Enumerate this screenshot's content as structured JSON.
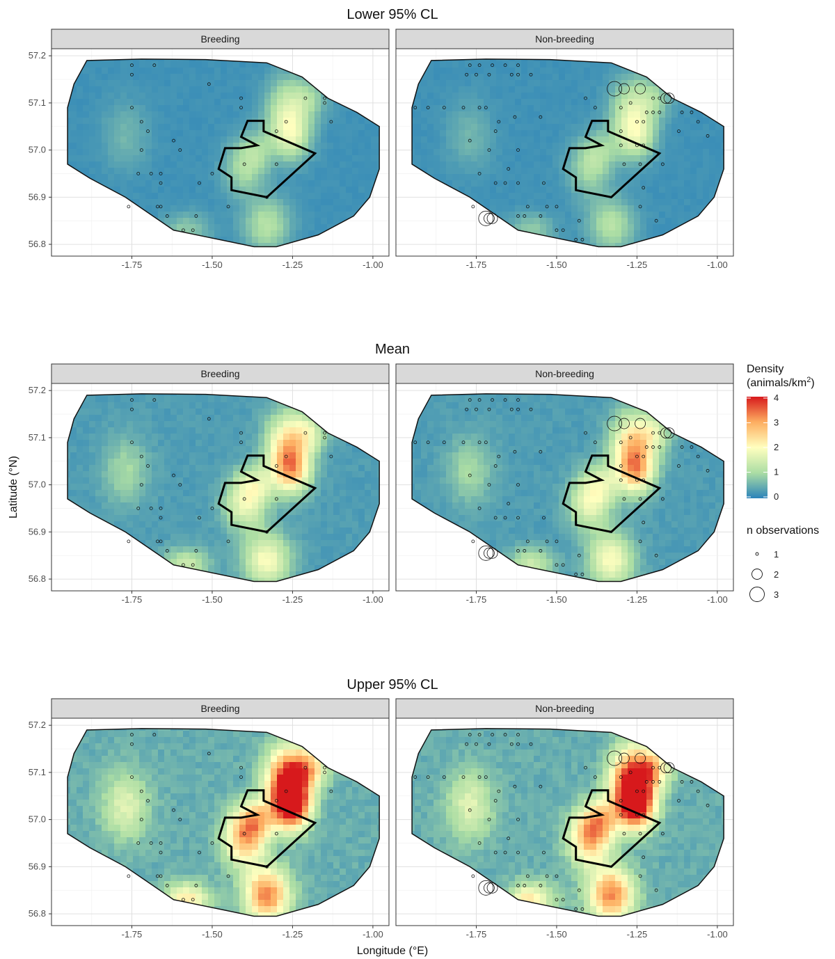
{
  "figure": {
    "rows": [
      {
        "title": "Lower 95% CL",
        "intensity": 0.35
      },
      {
        "title": "Mean",
        "intensity": 0.6
      },
      {
        "title": "Upper 95% CL",
        "intensity": 1.0
      }
    ],
    "panels": [
      "Breeding",
      "Non-breeding"
    ],
    "x_label": "Longitude (°E)",
    "y_label": "Latitude (°N)",
    "x_ticks": [
      "-1.75",
      "-1.50",
      "-1.25",
      "-1.00"
    ],
    "y_ticks": [
      "57.2",
      "57.1",
      "57.0",
      "56.9",
      "56.8"
    ]
  },
  "legend": {
    "density_title_line1": "Density",
    "density_title_line2": "(animals/km",
    "density_title_sup": "2",
    "density_title_close": ")",
    "density_ticks": [
      "4",
      "3",
      "2",
      "1",
      "0"
    ],
    "colors": [
      "#d7191c",
      "#fdae61",
      "#ffffbf",
      "#abdda4",
      "#2b83ba"
    ],
    "size_title": "n observations",
    "size_items": [
      "1",
      "2",
      "3"
    ]
  },
  "chart_data": {
    "type": "map",
    "xlim": [
      -2.0,
      -0.95
    ],
    "ylim": [
      56.775,
      57.215
    ],
    "color_scale": {
      "min": 0,
      "max": 4,
      "palette": "Spectral (reversed)"
    },
    "survey_area_outline": [
      [
        -1.89,
        57.19
      ],
      [
        -1.72,
        57.193
      ],
      [
        -1.52,
        57.192
      ],
      [
        -1.33,
        57.185
      ],
      [
        -1.22,
        57.155
      ],
      [
        -1.14,
        57.11
      ],
      [
        -1.05,
        57.08
      ],
      [
        -0.98,
        57.05
      ],
      [
        -0.98,
        56.96
      ],
      [
        -1.01,
        56.9
      ],
      [
        -1.06,
        56.86
      ],
      [
        -1.17,
        56.82
      ],
      [
        -1.3,
        56.795
      ],
      [
        -1.37,
        56.795
      ],
      [
        -1.62,
        56.83
      ],
      [
        -1.77,
        56.9
      ],
      [
        -1.88,
        56.94
      ],
      [
        -1.95,
        56.97
      ],
      [
        -1.95,
        57.09
      ],
      [
        -1.93,
        57.14
      ]
    ],
    "site_boundary": [
      [
        -1.39,
        57.062
      ],
      [
        -1.34,
        57.062
      ],
      [
        -1.34,
        57.04
      ],
      [
        -1.18,
        56.993
      ],
      [
        -1.33,
        56.9
      ],
      [
        -1.44,
        56.915
      ],
      [
        -1.44,
        56.942
      ],
      [
        -1.48,
        56.96
      ],
      [
        -1.46,
        57.004
      ],
      [
        -1.41,
        57.004
      ],
      [
        -1.36,
        57.01
      ],
      [
        -1.41,
        57.028
      ]
    ],
    "hotspots": [
      {
        "lon": -1.27,
        "lat": 57.08,
        "weight": 1.0,
        "sx": 0.045,
        "sy": 0.05
      },
      {
        "lon": -1.25,
        "lat": 57.03,
        "weight": 0.95,
        "sx": 0.04,
        "sy": 0.035
      },
      {
        "lon": -1.33,
        "lat": 56.84,
        "weight": 0.85,
        "sx": 0.05,
        "sy": 0.04
      },
      {
        "lon": -1.4,
        "lat": 56.96,
        "weight": 0.7,
        "sx": 0.045,
        "sy": 0.04
      },
      {
        "lon": -1.2,
        "lat": 57.11,
        "weight": 0.6,
        "sx": 0.04,
        "sy": 0.03
      },
      {
        "lon": -1.58,
        "lat": 56.83,
        "weight": 0.55,
        "sx": 0.05,
        "sy": 0.025
      },
      {
        "lon": -1.36,
        "lat": 57.0,
        "weight": 0.5,
        "sx": 0.04,
        "sy": 0.03
      },
      {
        "lon": -1.77,
        "lat": 57.03,
        "weight": 0.35,
        "sx": 0.05,
        "sy": 0.05
      }
    ],
    "observations": {
      "Breeding": [
        [
          -1.75,
          57.18,
          1
        ],
        [
          -1.68,
          57.18,
          1
        ],
        [
          -1.75,
          57.16,
          1
        ],
        [
          -1.75,
          57.09,
          1
        ],
        [
          -1.72,
          57.06,
          1
        ],
        [
          -1.7,
          57.04,
          1
        ],
        [
          -1.62,
          57.02,
          1
        ],
        [
          -1.72,
          57.0,
          1
        ],
        [
          -1.6,
          57.0,
          1
        ],
        [
          -1.73,
          56.95,
          1
        ],
        [
          -1.69,
          56.95,
          1
        ],
        [
          -1.66,
          56.95,
          1
        ],
        [
          -1.66,
          56.93,
          1
        ],
        [
          -1.51,
          57.14,
          1
        ],
        [
          -1.5,
          56.95,
          1
        ],
        [
          -1.54,
          56.93,
          1
        ],
        [
          -1.76,
          56.88,
          1
        ],
        [
          -1.67,
          56.88,
          1
        ],
        [
          -1.66,
          56.88,
          1
        ],
        [
          -1.64,
          56.86,
          1
        ],
        [
          -1.59,
          56.83,
          1
        ],
        [
          -1.56,
          56.83,
          1
        ],
        [
          -1.55,
          56.86,
          1
        ],
        [
          -1.45,
          56.88,
          1
        ],
        [
          -1.41,
          57.11,
          1
        ],
        [
          -1.41,
          57.09,
          1
        ],
        [
          -1.3,
          57.04,
          1
        ],
        [
          -1.27,
          57.06,
          1
        ],
        [
          -1.4,
          56.97,
          1
        ],
        [
          -1.3,
          56.97,
          1
        ],
        [
          -1.33,
          56.9,
          1
        ],
        [
          -1.15,
          57.1,
          1
        ],
        [
          -1.15,
          57.11,
          1
        ],
        [
          -1.13,
          57.06,
          1
        ],
        [
          -1.21,
          57.11,
          1
        ]
      ],
      "Non-breeding": [
        [
          -1.77,
          57.18,
          1
        ],
        [
          -1.74,
          57.18,
          1
        ],
        [
          -1.7,
          57.18,
          1
        ],
        [
          -1.66,
          57.18,
          1
        ],
        [
          -1.62,
          57.18,
          1
        ],
        [
          -1.78,
          57.16,
          1
        ],
        [
          -1.75,
          57.16,
          1
        ],
        [
          -1.71,
          57.16,
          1
        ],
        [
          -1.64,
          57.16,
          1
        ],
        [
          -1.62,
          57.16,
          1
        ],
        [
          -1.58,
          57.16,
          1
        ],
        [
          -1.94,
          57.09,
          1
        ],
        [
          -1.9,
          57.09,
          1
        ],
        [
          -1.85,
          57.09,
          1
        ],
        [
          -1.79,
          57.09,
          1
        ],
        [
          -1.74,
          57.09,
          1
        ],
        [
          -1.72,
          57.09,
          1
        ],
        [
          -1.68,
          57.06,
          1
        ],
        [
          -1.63,
          57.07,
          1
        ],
        [
          -1.55,
          57.07,
          1
        ],
        [
          -1.69,
          57.04,
          1
        ],
        [
          -1.77,
          57.02,
          1
        ],
        [
          -1.71,
          57.0,
          1
        ],
        [
          -1.62,
          57.0,
          1
        ],
        [
          -1.65,
          56.96,
          1
        ],
        [
          -1.74,
          56.95,
          1
        ],
        [
          -1.69,
          56.93,
          1
        ],
        [
          -1.66,
          56.93,
          1
        ],
        [
          -1.62,
          56.93,
          1
        ],
        [
          -1.59,
          56.88,
          1
        ],
        [
          -1.54,
          56.93,
          1
        ],
        [
          -1.53,
          56.88,
          1
        ],
        [
          -1.5,
          56.88,
          1
        ],
        [
          -1.76,
          56.88,
          1
        ],
        [
          -1.62,
          56.86,
          1
        ],
        [
          -1.6,
          56.86,
          1
        ],
        [
          -1.55,
          56.86,
          1
        ],
        [
          -1.5,
          56.83,
          1
        ],
        [
          -1.48,
          56.83,
          1
        ],
        [
          -1.44,
          56.81,
          1
        ],
        [
          -1.42,
          56.81,
          1
        ],
        [
          -1.43,
          56.85,
          1
        ],
        [
          -1.41,
          57.11,
          1
        ],
        [
          -1.38,
          57.09,
          1
        ],
        [
          -1.3,
          57.09,
          1
        ],
        [
          -1.27,
          57.1,
          1
        ],
        [
          -1.2,
          57.11,
          1
        ],
        [
          -1.18,
          57.11,
          1
        ],
        [
          -1.22,
          57.08,
          1
        ],
        [
          -1.2,
          57.08,
          1
        ],
        [
          -1.18,
          57.08,
          1
        ],
        [
          -1.25,
          57.06,
          1
        ],
        [
          -1.23,
          57.06,
          1
        ],
        [
          -1.3,
          57.04,
          1
        ],
        [
          -1.3,
          57.01,
          1
        ],
        [
          -1.25,
          57.01,
          1
        ],
        [
          -1.23,
          57.01,
          1
        ],
        [
          -1.29,
          56.97,
          1
        ],
        [
          -1.24,
          56.97,
          1
        ],
        [
          -1.17,
          56.97,
          1
        ],
        [
          -1.23,
          56.92,
          1
        ],
        [
          -1.24,
          56.88,
          1
        ],
        [
          -1.19,
          56.85,
          1
        ],
        [
          -1.11,
          57.08,
          1
        ],
        [
          -1.08,
          57.08,
          1
        ],
        [
          -1.06,
          57.06,
          1
        ],
        [
          -1.03,
          57.03,
          1
        ],
        [
          -1.12,
          57.04,
          1
        ],
        [
          -1.32,
          57.13,
          3
        ],
        [
          -1.29,
          57.13,
          2
        ],
        [
          -1.24,
          57.13,
          2
        ],
        [
          -1.16,
          57.11,
          2
        ],
        [
          -1.15,
          57.11,
          2
        ],
        [
          -1.72,
          56.855,
          3
        ],
        [
          -1.7,
          56.855,
          2
        ],
        [
          -1.71,
          56.855,
          2
        ]
      ]
    }
  }
}
